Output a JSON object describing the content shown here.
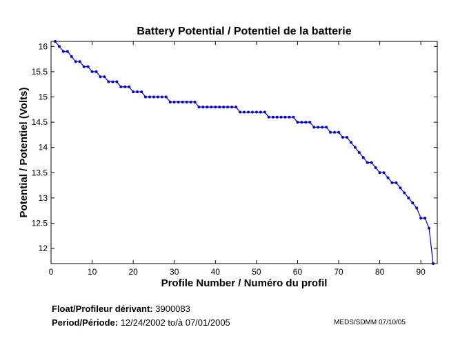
{
  "chart_data": {
    "type": "line",
    "title": "Battery Potential / Potentiel de la batterie",
    "xlabel": "Profile Number / Numéro du profil",
    "ylabel": "Potential / Potentiel (Volts)",
    "xlim": [
      0,
      94
    ],
    "ylim": [
      11.7,
      16.1
    ],
    "xticks": [
      0,
      10,
      20,
      30,
      40,
      50,
      60,
      70,
      80,
      90
    ],
    "yticks": [
      12,
      12.5,
      13,
      13.5,
      14,
      14.5,
      15,
      15.5,
      16
    ],
    "grid": false,
    "line_color": "#0000cc",
    "series": [
      {
        "x": [
          1,
          2,
          3,
          4,
          5,
          6,
          7,
          8,
          9,
          10,
          11,
          12,
          13,
          14,
          15,
          16,
          17,
          18,
          19,
          20,
          21,
          22,
          23,
          24,
          25,
          26,
          27,
          28,
          29,
          30,
          31,
          32,
          33,
          34,
          35,
          36,
          37,
          38,
          39,
          40,
          41,
          42,
          43,
          44,
          45,
          46,
          47,
          48,
          49,
          50,
          51,
          52,
          53,
          54,
          55,
          56,
          57,
          58,
          59,
          60,
          61,
          62,
          63,
          64,
          65,
          66,
          67,
          68,
          69,
          70,
          71,
          72,
          73,
          74,
          75,
          76,
          77,
          78,
          79,
          80,
          81,
          82,
          83,
          84,
          85,
          86,
          87,
          88,
          89,
          90,
          91,
          92,
          93
        ],
        "y": [
          16.1,
          16.0,
          15.9,
          15.9,
          15.8,
          15.7,
          15.7,
          15.6,
          15.6,
          15.5,
          15.5,
          15.4,
          15.4,
          15.3,
          15.3,
          15.3,
          15.2,
          15.2,
          15.2,
          15.1,
          15.1,
          15.1,
          15.0,
          15.0,
          15.0,
          15.0,
          15.0,
          15.0,
          14.9,
          14.9,
          14.9,
          14.9,
          14.9,
          14.9,
          14.9,
          14.8,
          14.8,
          14.8,
          14.8,
          14.8,
          14.8,
          14.8,
          14.8,
          14.8,
          14.8,
          14.7,
          14.7,
          14.7,
          14.7,
          14.7,
          14.7,
          14.7,
          14.6,
          14.6,
          14.6,
          14.6,
          14.6,
          14.6,
          14.6,
          14.5,
          14.5,
          14.5,
          14.5,
          14.4,
          14.4,
          14.4,
          14.4,
          14.3,
          14.3,
          14.3,
          14.2,
          14.2,
          14.1,
          14.0,
          13.9,
          13.8,
          13.7,
          13.7,
          13.6,
          13.5,
          13.5,
          13.4,
          13.3,
          13.3,
          13.2,
          13.1,
          13.0,
          12.9,
          12.8,
          12.6,
          12.6,
          12.4,
          11.7
        ]
      }
    ]
  },
  "footer": {
    "float_label": "Float/Profileur dérivant:",
    "float_value": "3900083",
    "period_label": "Period/Période:",
    "period_start": "12/24/2002",
    "period_sep": "to/à",
    "period_end": "07/01/2005",
    "credit": "MEDS/SDMM  07/10/05"
  }
}
